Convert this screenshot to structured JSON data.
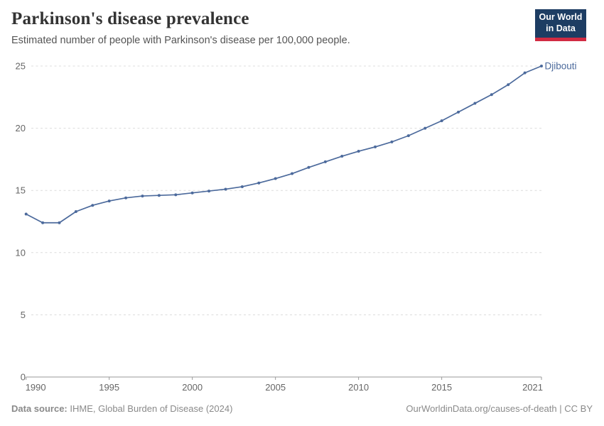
{
  "header": {
    "title": "Parkinson's disease prevalence",
    "subtitle": "Estimated number of people with Parkinson's disease per 100,000 people.",
    "logo": {
      "line1": "Our World",
      "line2": "in Data"
    }
  },
  "chart_data": {
    "type": "line",
    "title": "Parkinson's disease prevalence",
    "subtitle": "Estimated number of people with Parkinson's disease per 100,000 people.",
    "x": [
      1990,
      1991,
      1992,
      1993,
      1994,
      1995,
      1996,
      1997,
      1998,
      1999,
      2000,
      2001,
      2002,
      2003,
      2004,
      2005,
      2006,
      2007,
      2008,
      2009,
      2010,
      2011,
      2012,
      2013,
      2014,
      2015,
      2016,
      2017,
      2018,
      2019,
      2020,
      2021
    ],
    "series": [
      {
        "name": "Djibouti",
        "color": "#4c6a9c",
        "values": [
          13.1,
          12.4,
          12.4,
          13.3,
          13.8,
          14.15,
          14.4,
          14.55,
          14.6,
          14.65,
          14.8,
          14.95,
          15.1,
          15.3,
          15.6,
          15.95,
          16.35,
          16.85,
          17.3,
          17.75,
          18.15,
          18.5,
          18.9,
          19.4,
          20.0,
          20.6,
          21.3,
          22.0,
          22.7,
          23.5,
          24.45,
          25.0
        ]
      }
    ],
    "xlabel": "",
    "ylabel": "",
    "ylim": [
      0,
      25
    ],
    "yticks": [
      0,
      5,
      10,
      15,
      20,
      25
    ],
    "xticks": [
      1990,
      1995,
      2000,
      2005,
      2010,
      2015,
      2021
    ],
    "grid": "horizontal-dashed",
    "legend_position": "end-of-line-label"
  },
  "colors": {
    "series_blue": "#4c6a9c",
    "gridline": "#dcdcdc",
    "axis": "#9a9a9a",
    "tick_text": "#666666",
    "logo_bg": "#1d3d63",
    "logo_accent": "#d12b42"
  },
  "footer": {
    "source_label": "Data source:",
    "source_text": "IHME, Global Burden of Disease (2024)",
    "link_text": "OurWorldinData.org/causes-of-death",
    "separator": "|",
    "license_text": "CC BY"
  }
}
